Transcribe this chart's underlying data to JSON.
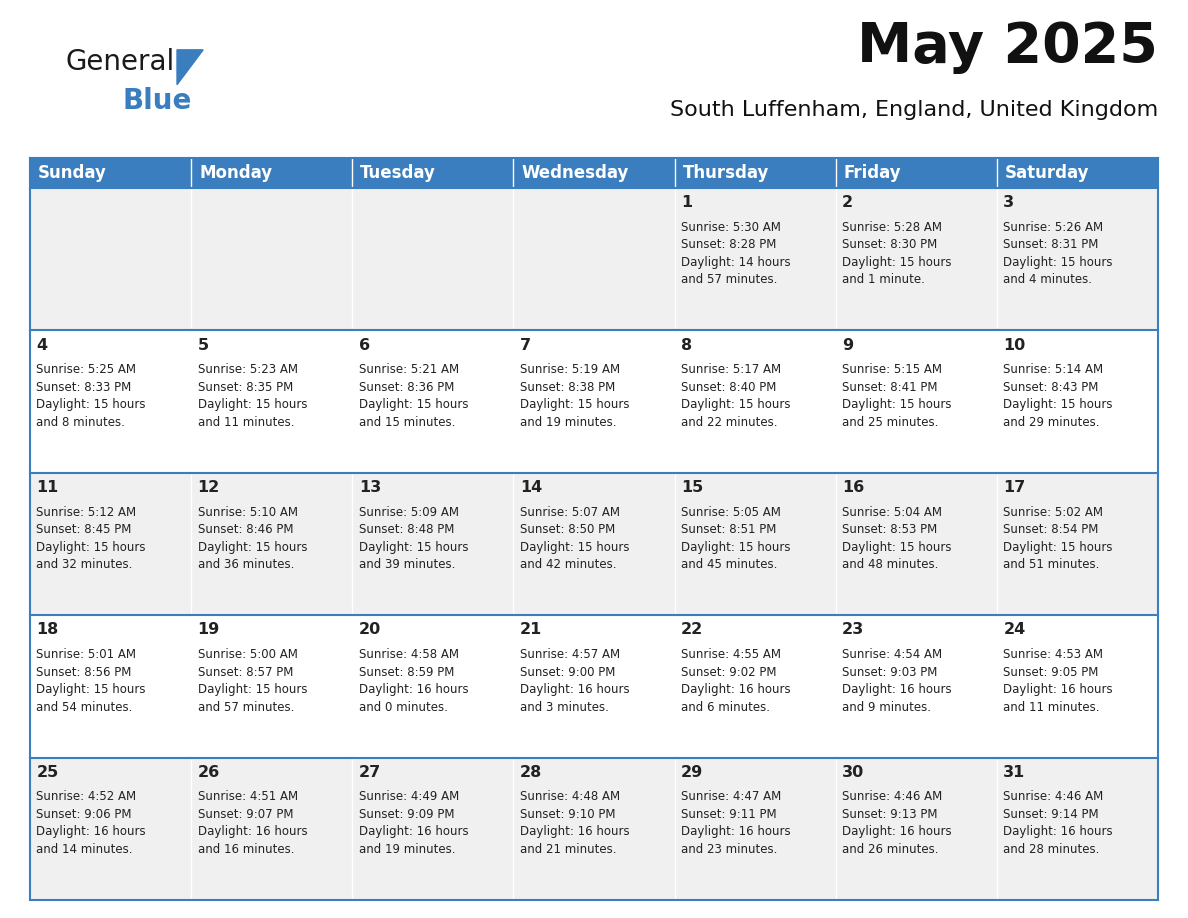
{
  "title": "May 2025",
  "subtitle": "South Luffenham, England, United Kingdom",
  "days_of_week": [
    "Sunday",
    "Monday",
    "Tuesday",
    "Wednesday",
    "Thursday",
    "Friday",
    "Saturday"
  ],
  "header_bg": "#3a7ebf",
  "header_text": "#ffffff",
  "row_bg_odd": "#f0f0f0",
  "row_bg_even": "#ffffff",
  "cell_text_color": "#222222",
  "day_number_color": "#222222",
  "border_color": "#3a7ebf",
  "title_color": "#111111",
  "subtitle_color": "#111111",
  "logo_color1": "#1a1a1a",
  "logo_color2": "#3a7ebf",
  "logo_triangle_color": "#3a7ebf",
  "calendar": [
    [
      {
        "day": null,
        "info": null
      },
      {
        "day": null,
        "info": null
      },
      {
        "day": null,
        "info": null
      },
      {
        "day": null,
        "info": null
      },
      {
        "day": 1,
        "info": "Sunrise: 5:30 AM\nSunset: 8:28 PM\nDaylight: 14 hours\nand 57 minutes."
      },
      {
        "day": 2,
        "info": "Sunrise: 5:28 AM\nSunset: 8:30 PM\nDaylight: 15 hours\nand 1 minute."
      },
      {
        "day": 3,
        "info": "Sunrise: 5:26 AM\nSunset: 8:31 PM\nDaylight: 15 hours\nand 4 minutes."
      }
    ],
    [
      {
        "day": 4,
        "info": "Sunrise: 5:25 AM\nSunset: 8:33 PM\nDaylight: 15 hours\nand 8 minutes."
      },
      {
        "day": 5,
        "info": "Sunrise: 5:23 AM\nSunset: 8:35 PM\nDaylight: 15 hours\nand 11 minutes."
      },
      {
        "day": 6,
        "info": "Sunrise: 5:21 AM\nSunset: 8:36 PM\nDaylight: 15 hours\nand 15 minutes."
      },
      {
        "day": 7,
        "info": "Sunrise: 5:19 AM\nSunset: 8:38 PM\nDaylight: 15 hours\nand 19 minutes."
      },
      {
        "day": 8,
        "info": "Sunrise: 5:17 AM\nSunset: 8:40 PM\nDaylight: 15 hours\nand 22 minutes."
      },
      {
        "day": 9,
        "info": "Sunrise: 5:15 AM\nSunset: 8:41 PM\nDaylight: 15 hours\nand 25 minutes."
      },
      {
        "day": 10,
        "info": "Sunrise: 5:14 AM\nSunset: 8:43 PM\nDaylight: 15 hours\nand 29 minutes."
      }
    ],
    [
      {
        "day": 11,
        "info": "Sunrise: 5:12 AM\nSunset: 8:45 PM\nDaylight: 15 hours\nand 32 minutes."
      },
      {
        "day": 12,
        "info": "Sunrise: 5:10 AM\nSunset: 8:46 PM\nDaylight: 15 hours\nand 36 minutes."
      },
      {
        "day": 13,
        "info": "Sunrise: 5:09 AM\nSunset: 8:48 PM\nDaylight: 15 hours\nand 39 minutes."
      },
      {
        "day": 14,
        "info": "Sunrise: 5:07 AM\nSunset: 8:50 PM\nDaylight: 15 hours\nand 42 minutes."
      },
      {
        "day": 15,
        "info": "Sunrise: 5:05 AM\nSunset: 8:51 PM\nDaylight: 15 hours\nand 45 minutes."
      },
      {
        "day": 16,
        "info": "Sunrise: 5:04 AM\nSunset: 8:53 PM\nDaylight: 15 hours\nand 48 minutes."
      },
      {
        "day": 17,
        "info": "Sunrise: 5:02 AM\nSunset: 8:54 PM\nDaylight: 15 hours\nand 51 minutes."
      }
    ],
    [
      {
        "day": 18,
        "info": "Sunrise: 5:01 AM\nSunset: 8:56 PM\nDaylight: 15 hours\nand 54 minutes."
      },
      {
        "day": 19,
        "info": "Sunrise: 5:00 AM\nSunset: 8:57 PM\nDaylight: 15 hours\nand 57 minutes."
      },
      {
        "day": 20,
        "info": "Sunrise: 4:58 AM\nSunset: 8:59 PM\nDaylight: 16 hours\nand 0 minutes."
      },
      {
        "day": 21,
        "info": "Sunrise: 4:57 AM\nSunset: 9:00 PM\nDaylight: 16 hours\nand 3 minutes."
      },
      {
        "day": 22,
        "info": "Sunrise: 4:55 AM\nSunset: 9:02 PM\nDaylight: 16 hours\nand 6 minutes."
      },
      {
        "day": 23,
        "info": "Sunrise: 4:54 AM\nSunset: 9:03 PM\nDaylight: 16 hours\nand 9 minutes."
      },
      {
        "day": 24,
        "info": "Sunrise: 4:53 AM\nSunset: 9:05 PM\nDaylight: 16 hours\nand 11 minutes."
      }
    ],
    [
      {
        "day": 25,
        "info": "Sunrise: 4:52 AM\nSunset: 9:06 PM\nDaylight: 16 hours\nand 14 minutes."
      },
      {
        "day": 26,
        "info": "Sunrise: 4:51 AM\nSunset: 9:07 PM\nDaylight: 16 hours\nand 16 minutes."
      },
      {
        "day": 27,
        "info": "Sunrise: 4:49 AM\nSunset: 9:09 PM\nDaylight: 16 hours\nand 19 minutes."
      },
      {
        "day": 28,
        "info": "Sunrise: 4:48 AM\nSunset: 9:10 PM\nDaylight: 16 hours\nand 21 minutes."
      },
      {
        "day": 29,
        "info": "Sunrise: 4:47 AM\nSunset: 9:11 PM\nDaylight: 16 hours\nand 23 minutes."
      },
      {
        "day": 30,
        "info": "Sunrise: 4:46 AM\nSunset: 9:13 PM\nDaylight: 16 hours\nand 26 minutes."
      },
      {
        "day": 31,
        "info": "Sunrise: 4:46 AM\nSunset: 9:14 PM\nDaylight: 16 hours\nand 28 minutes."
      }
    ]
  ]
}
